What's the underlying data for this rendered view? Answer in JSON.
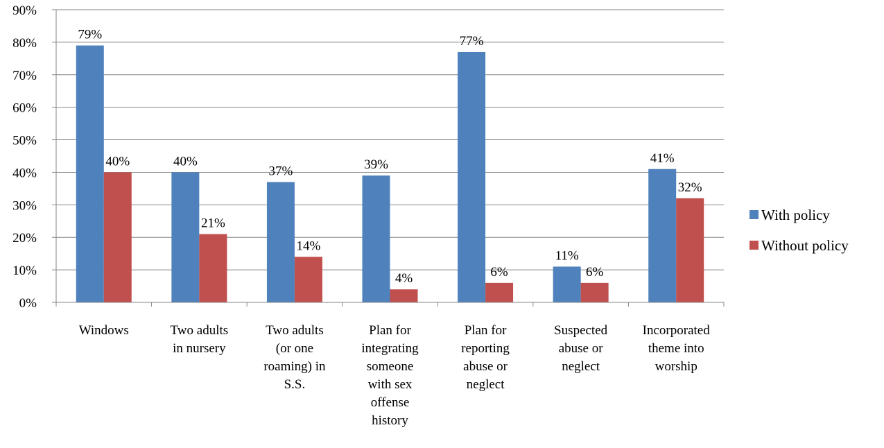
{
  "chart_data": {
    "type": "bar",
    "categories": [
      [
        "Windows"
      ],
      [
        "Two adults",
        "in nursery"
      ],
      [
        "Two adults",
        "(or one",
        "roaming) in",
        "S.S."
      ],
      [
        "Plan for",
        "integrating",
        "someone",
        "with sex",
        "offense",
        "history"
      ],
      [
        "Plan for",
        "reporting",
        "abuse or",
        "neglect"
      ],
      [
        "Suspected",
        "abuse or",
        "neglect"
      ],
      [
        "Incorporated",
        "theme into",
        "worship"
      ]
    ],
    "series": [
      {
        "name": "With policy",
        "color": "#4F81BD",
        "values": [
          79,
          40,
          37,
          39,
          77,
          11,
          41
        ]
      },
      {
        "name": "Without policy",
        "color": "#C0504D",
        "values": [
          40,
          21,
          14,
          4,
          6,
          6,
          32
        ]
      }
    ],
    "value_suffix": "%",
    "ylim": [
      0,
      90
    ],
    "yticks": [
      0,
      10,
      20,
      30,
      40,
      50,
      60,
      70,
      80,
      90
    ],
    "ytick_labels": [
      "0%",
      "10%",
      "20%",
      "30%",
      "40%",
      "50%",
      "60%",
      "70%",
      "80%",
      "90%"
    ],
    "grid": true,
    "legend": "right",
    "title": "",
    "xlabel": "",
    "ylabel": ""
  }
}
